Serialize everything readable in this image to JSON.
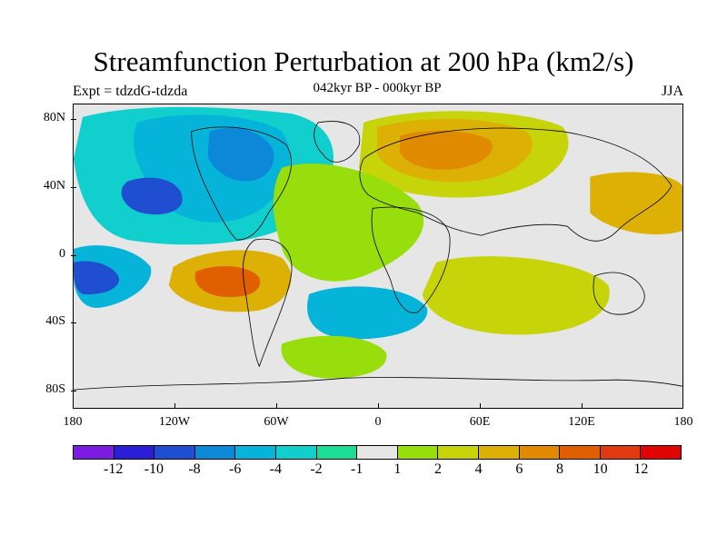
{
  "title": "Streamfunction Perturbation at 200 hPa (km2/s)",
  "subtitle": "042kyr BP - 000kyr BP",
  "experiment": "Expt = tdzdG-tdzda",
  "season": "JJA",
  "axes": {
    "y_ticks": [
      "80N",
      "40N",
      "0",
      "40S",
      "80S"
    ],
    "x_ticks": [
      "180",
      "120W",
      "60W",
      "0",
      "60E",
      "120E",
      "180"
    ]
  },
  "colorbar": {
    "colors": [
      "#7b1ce0",
      "#2c1ed6",
      "#1f4fd0",
      "#0d88d8",
      "#06b3d9",
      "#11cfcc",
      "#1ddc95",
      "#e6e6e6",
      "#98dd0c",
      "#c8d40a",
      "#dcb005",
      "#e08a00",
      "#e06000",
      "#e03a10",
      "#e00505"
    ],
    "labels": [
      "-12",
      "-10",
      "-8",
      "-6",
      "-4",
      "-2",
      "-1",
      "1",
      "2",
      "4",
      "6",
      "8",
      "10",
      "12"
    ]
  },
  "map_fields": {
    "background_color": "#e6e6e6",
    "blobs": [
      {
        "name": "n-pacific-low",
        "color": "#11cfcc"
      },
      {
        "name": "canada-low",
        "color": "#06b3d9"
      },
      {
        "name": "canada-core",
        "color": "#0d88d8"
      },
      {
        "name": "n-pacific-core",
        "color": "#1f4fd0"
      },
      {
        "name": "eurasia-high",
        "color": "#c8d40a"
      },
      {
        "name": "eurasia-mid",
        "color": "#dcb005"
      },
      {
        "name": "eurasia-core",
        "color": "#e08a00"
      },
      {
        "name": "s-pacific-high",
        "color": "#dcb005"
      },
      {
        "name": "s-pacific-core",
        "color": "#e06000"
      },
      {
        "name": "s-pacific-low",
        "color": "#06b3d9"
      },
      {
        "name": "s-pacific-low-core",
        "color": "#1f4fd0"
      },
      {
        "name": "indian-ocean-high",
        "color": "#c8d40a"
      },
      {
        "name": "w-pacific-high",
        "color": "#dcb005"
      },
      {
        "name": "atlantic-high",
        "color": "#98dd0c"
      },
      {
        "name": "s-atlantic-low",
        "color": "#06b3d9"
      },
      {
        "name": "southern-ocean-high",
        "color": "#98dd0c"
      }
    ]
  }
}
